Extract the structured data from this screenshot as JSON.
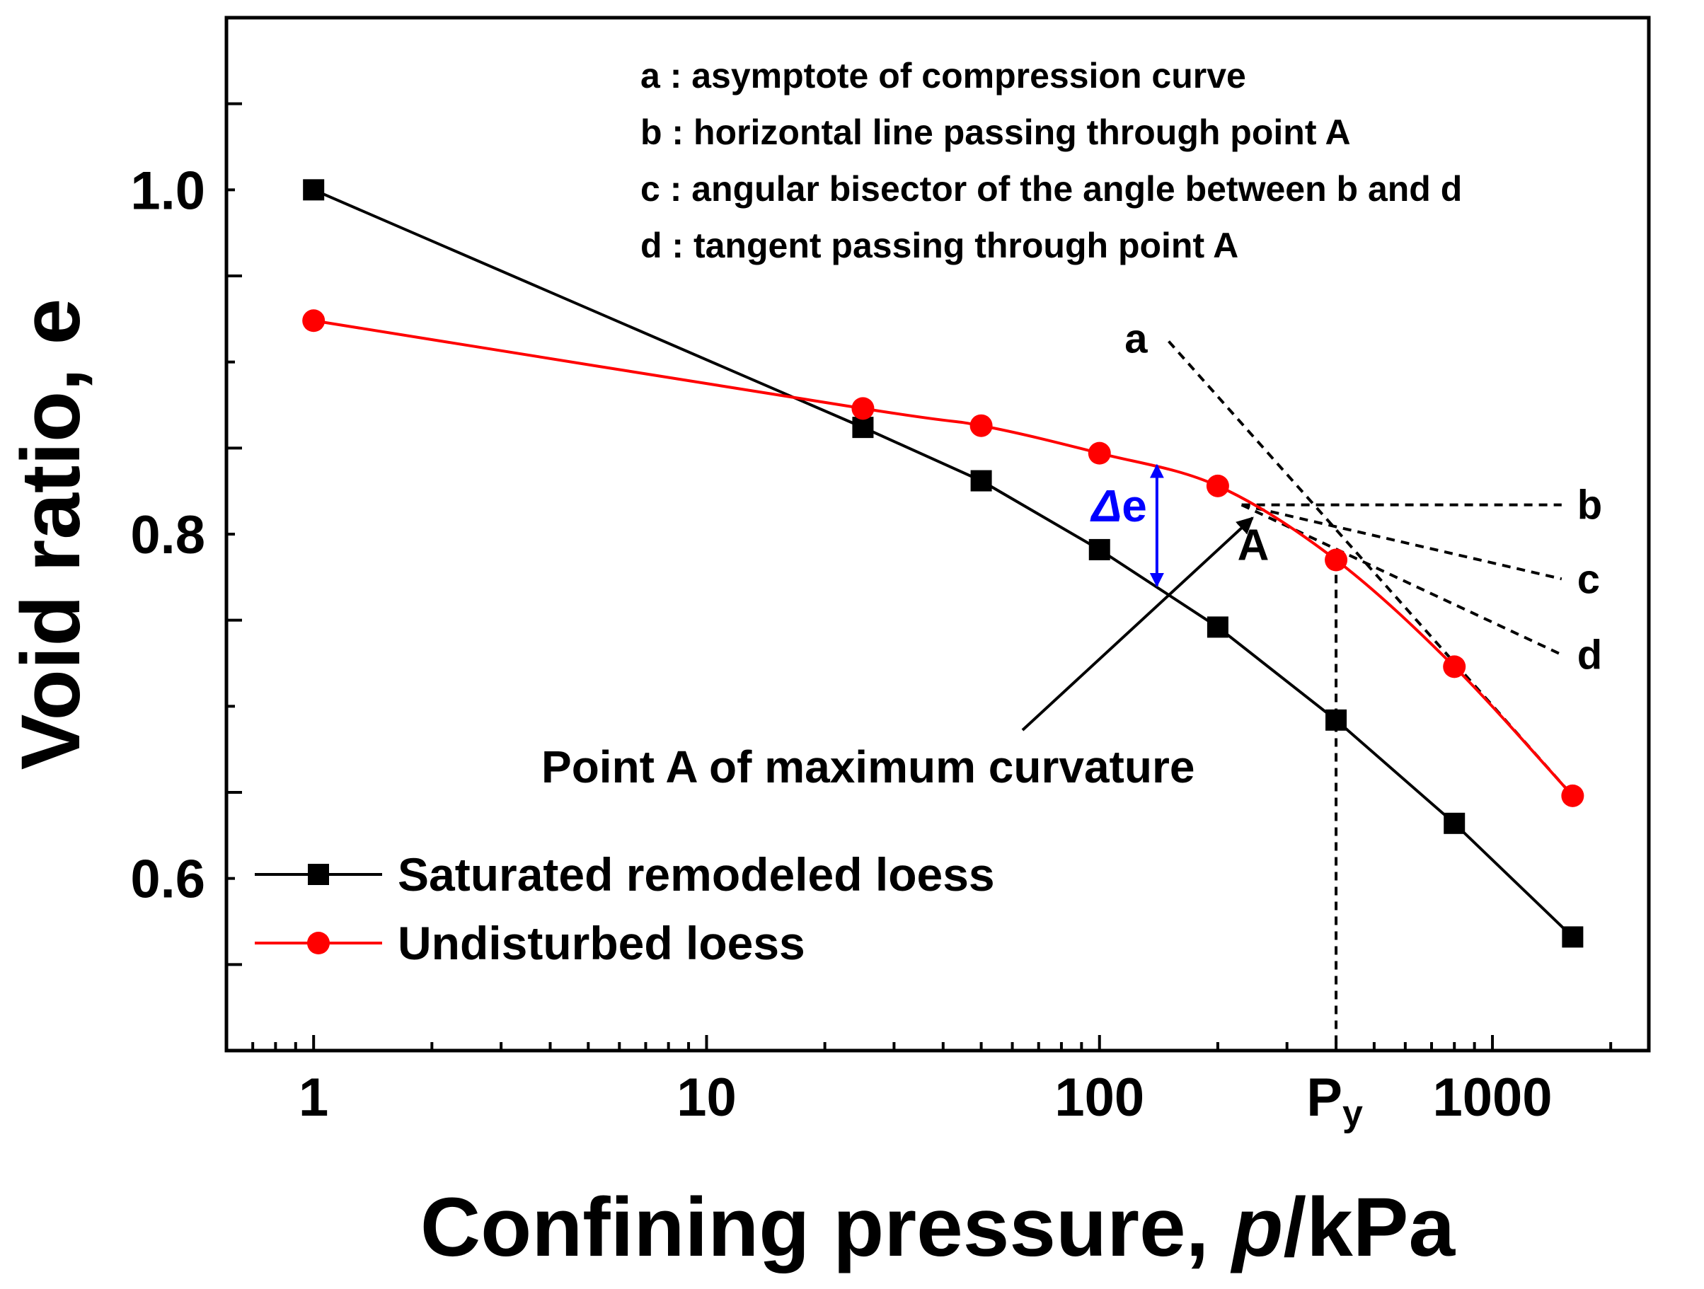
{
  "chart_data": {
    "type": "line",
    "x_scale": "log",
    "xlim": [
      0.6,
      2500
    ],
    "ylim": [
      0.5,
      1.1
    ],
    "xlabel_prefix": "Confining pressure, ",
    "xlabel_var": "p",
    "xlabel_unit": "/kPa",
    "ylabel": "Void ratio, e",
    "x_tick_labels": [
      {
        "value": 1,
        "label": "1"
      },
      {
        "value": 10,
        "label": "10"
      },
      {
        "value": 100,
        "label": "100"
      },
      {
        "value": 1000,
        "label": "1000"
      }
    ],
    "py": {
      "value": 400,
      "label": "P",
      "sub": "y"
    },
    "y_tick_labels": [
      {
        "value": 1.0,
        "label": "1.0"
      },
      {
        "value": 0.8,
        "label": "0.8"
      },
      {
        "value": 0.6,
        "label": "0.6"
      }
    ],
    "series": [
      {
        "name": "Saturated remodeled loess",
        "color": "#000000",
        "marker": "square",
        "x": [
          1,
          25,
          50,
          100,
          200,
          400,
          800,
          1600
        ],
        "y": [
          1.0,
          0.862,
          0.831,
          0.791,
          0.746,
          0.692,
          0.632,
          0.566
        ]
      },
      {
        "name": "Undisturbed loess",
        "color": "#ff0000",
        "marker": "circle",
        "x": [
          1,
          25,
          50,
          100,
          200,
          400,
          800,
          1600
        ],
        "y": [
          0.924,
          0.873,
          0.863,
          0.847,
          0.828,
          0.785,
          0.723,
          0.648
        ]
      }
    ],
    "point_a": {
      "x": 230,
      "y": 0.817,
      "label": "A"
    },
    "construction_lines": [
      {
        "id": "a",
        "label": "a",
        "from": [
          150,
          0.912
        ],
        "to": [
          1600,
          0.648
        ]
      },
      {
        "id": "b",
        "label": "b",
        "from": [
          230,
          0.817
        ],
        "to": [
          1500,
          0.817
        ]
      },
      {
        "id": "c",
        "label": "c",
        "from": [
          230,
          0.817
        ],
        "to": [
          1500,
          0.774
        ]
      },
      {
        "id": "d",
        "label": "d",
        "from": [
          230,
          0.817
        ],
        "to": [
          1500,
          0.73
        ]
      }
    ],
    "annotations": {
      "legend_notes": [
        "a : asymptote of compression curve",
        "b : horizontal line passing through point A",
        "c : angular bisector of the angle between b and d",
        "d : tangent passing through point A"
      ],
      "point_a_caption": "Point A of maximum curvature",
      "delta_e": {
        "symbol": "Δ",
        "letter": "e",
        "x": 140,
        "y_top": 0.84,
        "y_bottom": 0.77,
        "color": "#0000ff"
      }
    },
    "legend_position": "bottom-left"
  }
}
